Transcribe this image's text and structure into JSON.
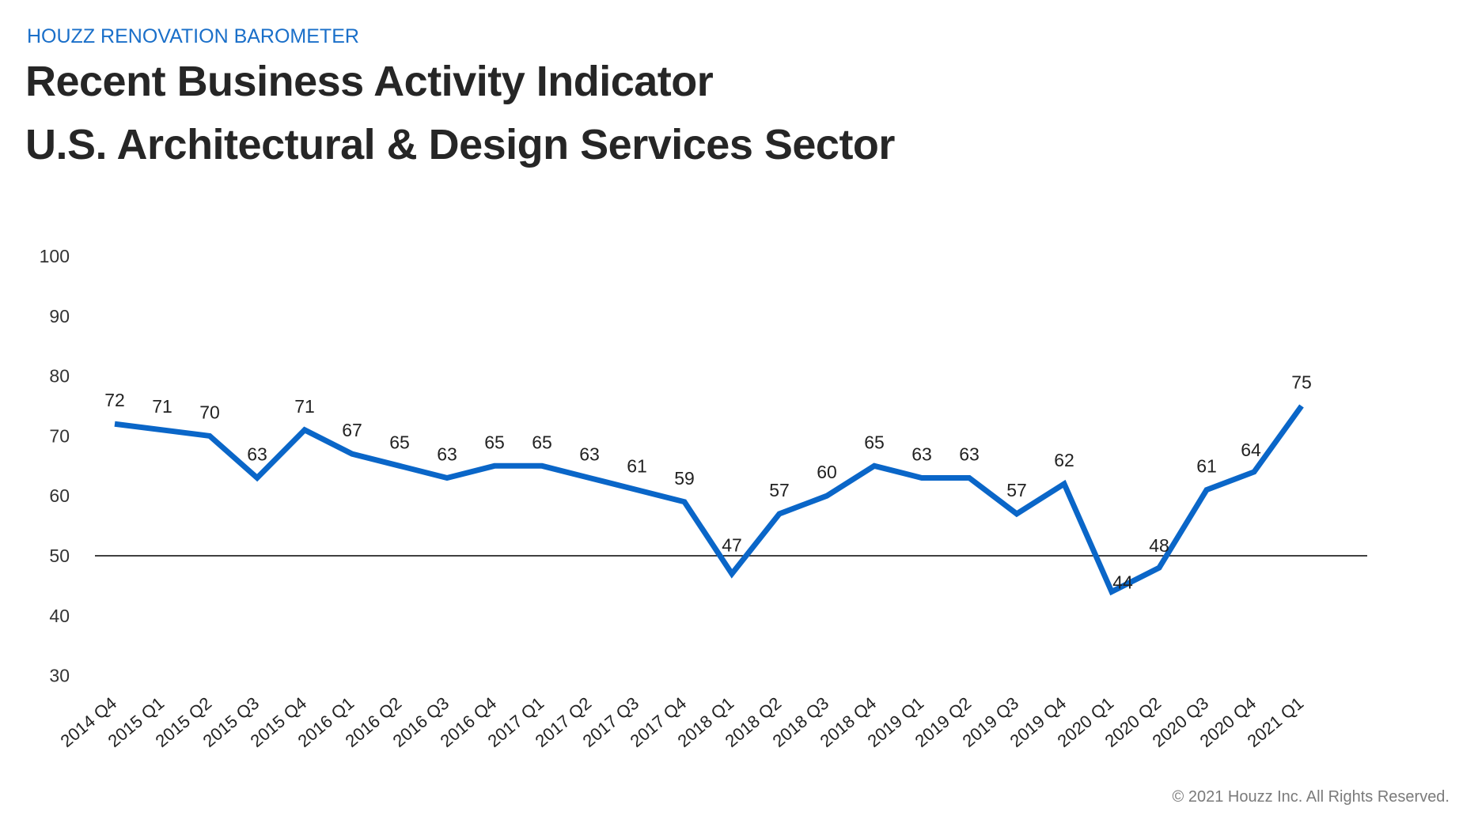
{
  "header": {
    "brand": "HOUZZ RENOVATION BAROMETER",
    "title_line1": "Recent Business Activity Indicator",
    "title_line2": "U.S. Architectural & Design Services Sector"
  },
  "footer": {
    "copyright": "© 2021 Houzz Inc. All Rights Reserved."
  },
  "colors": {
    "line": "#0a66c8",
    "brand": "#1a6fc9",
    "reference_line": "#000000"
  },
  "chart_data": {
    "type": "line",
    "title": "Recent Business Activity Indicator U.S. Architectural & Design Services Sector",
    "xlabel": "",
    "ylabel": "",
    "ylim": [
      30,
      100
    ],
    "yticks": [
      "100",
      "90",
      "80",
      "70",
      "60",
      "50",
      "40",
      "30"
    ],
    "ytick_values": [
      100,
      90,
      80,
      70,
      60,
      50,
      40,
      30
    ],
    "grid": false,
    "reference_line": 50,
    "categories": [
      "2014 Q4",
      "2015 Q1",
      "2015 Q2",
      "2015 Q3",
      "2015 Q4",
      "2016 Q1",
      "2016 Q2",
      "2016 Q3",
      "2016 Q4",
      "2017 Q1",
      "2017 Q2",
      "2017 Q3",
      "2017 Q4",
      "2018 Q1",
      "2018 Q2",
      "2018 Q3",
      "2018 Q4",
      "2019 Q1",
      "2019 Q2",
      "2019 Q3",
      "2019 Q4",
      "2020 Q1",
      "2020 Q2",
      "2020 Q3",
      "2020 Q4",
      "2021 Q1"
    ],
    "series": [
      {
        "name": "Recent Business Activity Indicator",
        "values": [
          72,
          71,
          70,
          63,
          71,
          67,
          65,
          63,
          65,
          65,
          63,
          61,
          59,
          47,
          57,
          60,
          65,
          63,
          63,
          57,
          62,
          44,
          48,
          61,
          64,
          75
        ],
        "data_labels": [
          "72",
          "71",
          "70",
          "63",
          "71",
          "67",
          "65",
          "63",
          "65",
          "65",
          "63",
          "61",
          "59",
          "47",
          "57",
          "60",
          "65",
          "63",
          "63",
          "57",
          "62",
          "44",
          "48",
          "61",
          "64",
          "75"
        ]
      }
    ]
  }
}
